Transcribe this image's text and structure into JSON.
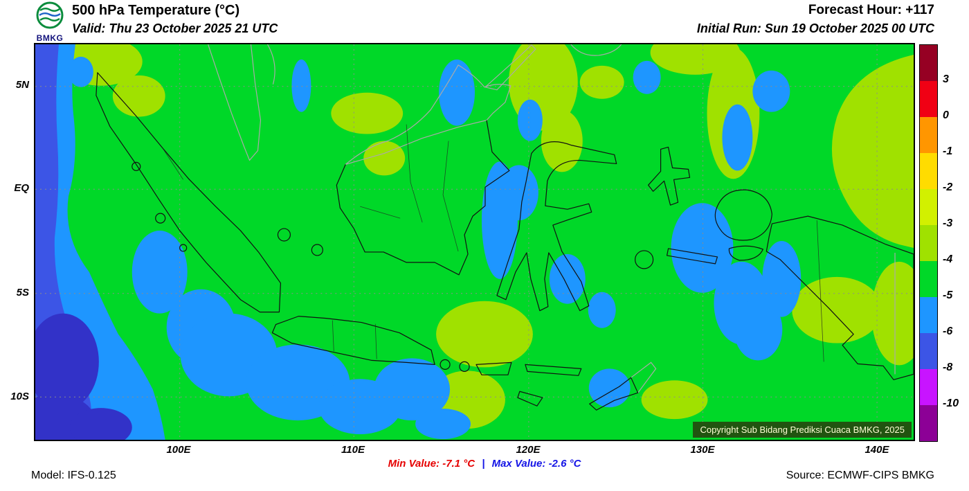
{
  "header": {
    "logo_text": "BMKG",
    "title": "500 hPa Temperature (°C)",
    "valid": "Valid: Thu 23 October 2025 21 UTC",
    "forecast_hour": "Forecast Hour: +117",
    "initial_run": "Initial Run: Sun 19 October 2025 00 UTC"
  },
  "map": {
    "lat_labels": [
      "5N",
      "EQ",
      "5S",
      "10S"
    ],
    "lon_labels": [
      "100E",
      "110E",
      "120E",
      "130E",
      "140E"
    ],
    "copyright": "Copyright Sub Bidang Prediksi Cuaca BMKG, 2025"
  },
  "colorbar": {
    "ticks": [
      "3",
      "0",
      "-1",
      "-2",
      "-3",
      "-4",
      "-5",
      "-6",
      "-8",
      "-10"
    ],
    "colors": [
      "#960023",
      "#f00014",
      "#ff9600",
      "#ffdc00",
      "#d2f000",
      "#a0e100",
      "#00d828",
      "#1e96ff",
      "#3c55e6",
      "#c814ff",
      "#8c0096"
    ]
  },
  "map_palette": {
    "green": "#00d828",
    "light_blue": "#1e96ff",
    "blue": "#3c55e6",
    "dark_blue": "#3232c8",
    "yellow_green": "#a0e100"
  },
  "footer": {
    "model": "Model: IFS-0.125",
    "min_value": "Min Value: -7.1 °C",
    "separator": "|",
    "max_value": "Max Value: -2.6 °C",
    "source": "Source: ECMWF-CIPS BMKG",
    "min_color": "#e60000",
    "max_color": "#1414e6"
  }
}
